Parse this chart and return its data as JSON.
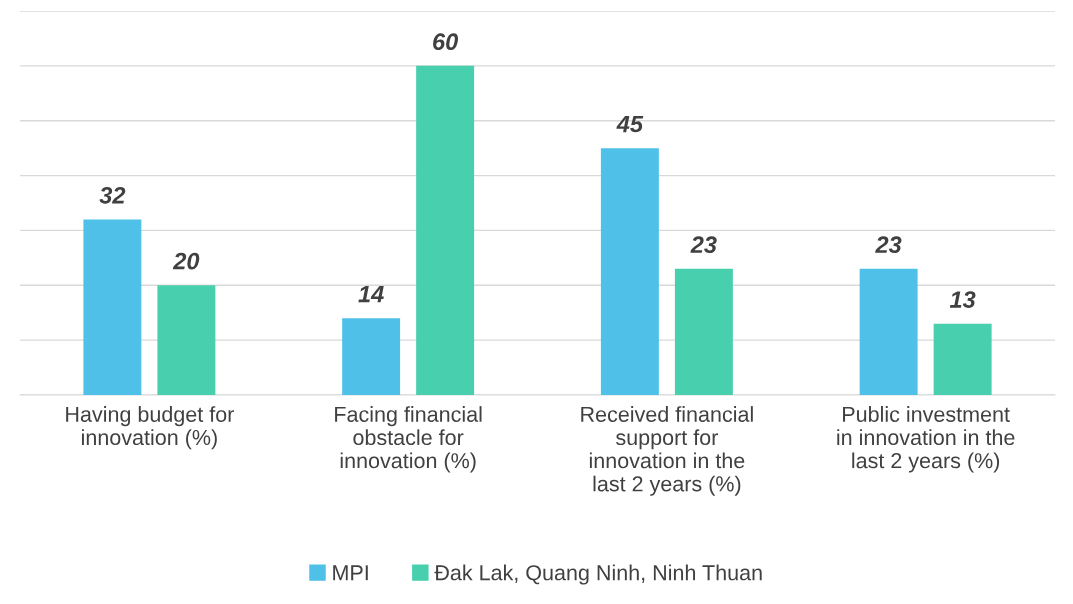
{
  "chart_data": {
    "type": "bar",
    "categories": [
      "Having budget for\ninnovation (%)",
      "Facing financial\nobstacle for\ninnovation (%)",
      "Received financial\nsupport for\ninnovation in the\nlast 2 years (%)",
      "Public investment\nin innovation in the\nlast 2 years (%)"
    ],
    "series": [
      {
        "name": "MPI",
        "color": "#4fc1e8",
        "values": [
          32,
          14,
          45,
          23
        ]
      },
      {
        "name": "Đak Lak, Quang Ninh, Ninh Thuan",
        "color": "#48cfad",
        "values": [
          20,
          60,
          23,
          13
        ]
      }
    ],
    "ylim": [
      0,
      70
    ],
    "yticks": [
      {
        "value": 0,
        "label": null
      },
      {
        "value": 10,
        "label": null
      },
      {
        "value": 20,
        "label": null
      },
      {
        "value": 30,
        "label": null
      },
      {
        "value": 40,
        "label": null
      },
      {
        "value": 50,
        "label": null
      },
      {
        "value": 60,
        "label": null
      },
      {
        "value": 70,
        "label": null
      }
    ],
    "grid": "y",
    "tick_labels": "x",
    "data_labels": true,
    "legend": "bottom"
  }
}
